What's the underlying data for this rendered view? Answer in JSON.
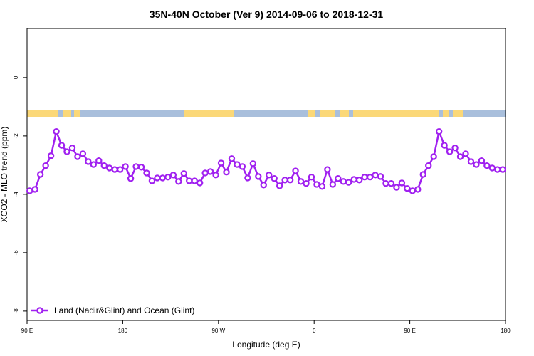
{
  "chart_data": {
    "type": "line",
    "title": "35N-40N October (Ver 9)   2014-09-06 to 2018-12-31",
    "x_label": "Longitude (deg E)",
    "y_label": "XCO2 - MLO trend (ppm)",
    "xlim": [
      90,
      540
    ],
    "xticks": [
      {
        "value": 90,
        "label": "90 E"
      },
      180,
      {
        "value": 270,
        "label": "90 W"
      },
      {
        "value": 360,
        "label": "0"
      },
      {
        "value": 450,
        "label": "90 E"
      },
      {
        "value": 540,
        "label": "180"
      }
    ],
    "ylim": [
      -8.32,
      1.68
    ],
    "yticks": [
      0,
      -2,
      -4,
      -6,
      -8
    ],
    "legend": "bottom-left",
    "x": [
      92.5,
      97.5,
      102.5,
      107.5,
      112.5,
      117.5,
      122.5,
      127.5,
      132.5,
      137.5,
      142.5,
      147.5,
      152.5,
      157.5,
      162.5,
      167.5,
      172.5,
      177.5,
      182.5,
      187.5,
      192.5,
      197.5,
      202.5,
      207.5,
      212.5,
      217.5,
      222.5,
      227.5,
      232.5,
      237.5,
      242.5,
      247.5,
      252.5,
      257.5,
      262.5,
      267.5,
      272.5,
      277.5,
      282.5,
      287.5,
      292.5,
      297.5,
      302.5,
      307.5,
      312.5,
      317.5,
      322.5,
      327.5,
      332.5,
      337.5,
      342.5,
      347.5,
      352.5,
      357.5,
      362.5,
      367.5,
      372.5,
      377.5,
      382.5,
      387.5,
      392.5,
      397.5,
      402.5,
      407.5,
      412.5,
      417.5,
      422.5,
      427.5,
      432.5,
      437.5,
      442.5,
      447.5,
      452.5,
      457.5,
      462.5,
      467.5,
      472.5,
      477.5,
      482.5,
      487.5,
      492.5,
      497.5,
      502.5,
      507.5,
      512.5,
      517.5,
      522.5,
      527.5,
      532.5,
      537.5
    ],
    "series": [
      {
        "name": "Land (Nadir&Glint) and Ocean (Glint)",
        "color": "#a020f0",
        "values": [
          -3.88,
          -3.83,
          -3.32,
          -3.02,
          -2.68,
          -1.85,
          -2.32,
          -2.54,
          -2.41,
          -2.71,
          -2.61,
          -2.88,
          -2.98,
          -2.85,
          -3.02,
          -3.1,
          -3.15,
          -3.15,
          -3.05,
          -3.46,
          -3.05,
          -3.07,
          -3.27,
          -3.54,
          -3.44,
          -3.44,
          -3.41,
          -3.34,
          -3.56,
          -3.29,
          -3.54,
          -3.54,
          -3.61,
          -3.27,
          -3.22,
          -3.34,
          -2.93,
          -3.24,
          -2.78,
          -2.98,
          -3.05,
          -3.44,
          -2.95,
          -3.39,
          -3.68,
          -3.34,
          -3.46,
          -3.71,
          -3.51,
          -3.51,
          -3.2,
          -3.56,
          -3.63,
          -3.41,
          -3.66,
          -3.73,
          -3.15,
          -3.66,
          -3.46,
          -3.56,
          -3.59,
          -3.49,
          -3.51,
          -3.41,
          -3.41,
          -3.34,
          -3.39,
          -3.63,
          -3.63,
          -3.76,
          -3.61,
          -3.8,
          -3.88,
          -3.83,
          -3.32,
          -3.02,
          -2.71,
          -1.85,
          -2.32,
          -2.54,
          -2.41,
          -2.71,
          -2.61,
          -2.88,
          -2.98,
          -2.85,
          -3.02,
          -3.1,
          -3.15,
          -3.15
        ]
      }
    ]
  }
}
